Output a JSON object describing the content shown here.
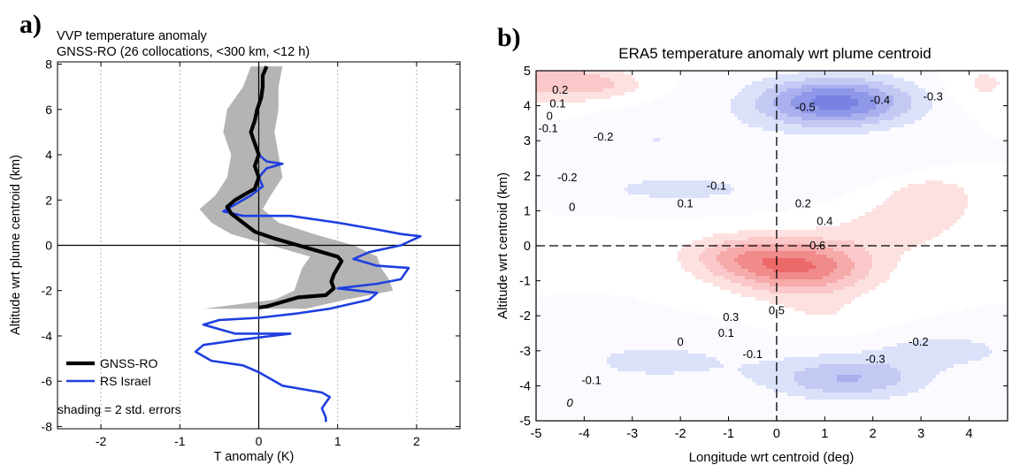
{
  "chart_data": [
    {
      "id": "a",
      "type": "line",
      "panel_label": "a)",
      "title": "VVP temperature anomaly",
      "subtitle": "GNSS-RO (26 collocations, <300 km, <12 h)",
      "xlabel": "T anomaly (K)",
      "ylabel": "Altitude wrt plume centroid (km)",
      "xlim": [
        -2.55,
        2.55
      ],
      "ylim": [
        -8.1,
        8.1
      ],
      "xticks": [
        -2,
        -1,
        0,
        1,
        2
      ],
      "yticks": [
        8,
        6,
        4,
        2,
        0,
        -2,
        -4,
        -6,
        -8
      ],
      "grid": "vertical dotted",
      "legend_position": "bottom-left",
      "note": "shading = 2 std. errors",
      "series": [
        {
          "name": "GNSS-RO",
          "color": "#000000",
          "points": [
            [
              0.1,
              7.9
            ],
            [
              0.05,
              7.5
            ],
            [
              0.05,
              7.0
            ],
            [
              0.03,
              6.5
            ],
            [
              -0.02,
              6.0
            ],
            [
              -0.05,
              5.5
            ],
            [
              -0.1,
              5.0
            ],
            [
              -0.05,
              4.5
            ],
            [
              0.0,
              4.0
            ],
            [
              -0.05,
              3.5
            ],
            [
              0.0,
              3.0
            ],
            [
              -0.05,
              2.5
            ],
            [
              -0.2,
              2.2
            ],
            [
              -0.3,
              2.0
            ],
            [
              -0.4,
              1.7
            ],
            [
              -0.35,
              1.4
            ],
            [
              -0.2,
              1.0
            ],
            [
              -0.05,
              0.6
            ],
            [
              0.2,
              0.3
            ],
            [
              0.5,
              0.0
            ],
            [
              0.8,
              -0.3
            ],
            [
              1.0,
              -0.5
            ],
            [
              1.05,
              -0.7
            ],
            [
              1.0,
              -1.0
            ],
            [
              0.95,
              -1.3
            ],
            [
              0.92,
              -1.6
            ],
            [
              0.95,
              -1.9
            ],
            [
              0.85,
              -2.2
            ],
            [
              0.5,
              -2.3
            ],
            [
              0.3,
              -2.5
            ],
            [
              0.1,
              -2.7
            ],
            [
              0.0,
              -2.75
            ]
          ]
        },
        {
          "name": "RS Israel",
          "color": "#1f3fe0",
          "points": [
            [
              0.0,
              4.0
            ],
            [
              0.1,
              3.7
            ],
            [
              0.3,
              3.6
            ],
            [
              0.1,
              3.4
            ],
            [
              0.0,
              3.0
            ],
            [
              0.05,
              2.6
            ],
            [
              -0.1,
              2.2
            ],
            [
              -0.3,
              1.8
            ],
            [
              -0.45,
              1.5
            ],
            [
              -0.2,
              1.3
            ],
            [
              0.4,
              1.3
            ],
            [
              1.0,
              1.0
            ],
            [
              1.5,
              0.7
            ],
            [
              1.8,
              0.5
            ],
            [
              2.05,
              0.4
            ],
            [
              1.8,
              0.0
            ],
            [
              1.4,
              -0.3
            ],
            [
              1.2,
              -0.6
            ],
            [
              1.5,
              -0.9
            ],
            [
              1.9,
              -1.0
            ],
            [
              1.8,
              -1.5
            ],
            [
              1.5,
              -1.7
            ],
            [
              1.0,
              -1.9
            ],
            [
              1.5,
              -2.1
            ],
            [
              1.4,
              -2.4
            ],
            [
              0.9,
              -2.8
            ],
            [
              0.5,
              -3.0
            ],
            [
              0.0,
              -3.2
            ],
            [
              -0.5,
              -3.3
            ],
            [
              -0.7,
              -3.5
            ],
            [
              -0.3,
              -3.9
            ],
            [
              0.4,
              -3.9
            ],
            [
              -0.3,
              -4.2
            ],
            [
              -0.7,
              -4.4
            ],
            [
              -0.8,
              -4.7
            ],
            [
              -0.6,
              -5.1
            ],
            [
              -0.2,
              -5.3
            ],
            [
              0.0,
              -5.6
            ],
            [
              0.3,
              -6.2
            ],
            [
              0.8,
              -6.5
            ],
            [
              0.9,
              -6.7
            ],
            [
              0.8,
              -7.2
            ],
            [
              0.85,
              -7.6
            ],
            [
              0.85,
              -7.8
            ]
          ]
        }
      ],
      "uncertainty_band": {
        "series": "GNSS-RO",
        "color": "#b4b4b4",
        "points": [
          [
            7.9,
            -0.1,
            0.3
          ],
          [
            7.0,
            -0.2,
            0.25
          ],
          [
            6.0,
            -0.4,
            0.25
          ],
          [
            5.0,
            -0.45,
            0.2
          ],
          [
            4.0,
            -0.35,
            0.25
          ],
          [
            3.0,
            -0.4,
            0.3
          ],
          [
            2.2,
            -0.55,
            0.15
          ],
          [
            1.6,
            -0.75,
            0.05
          ],
          [
            1.0,
            -0.6,
            0.25
          ],
          [
            0.5,
            -0.35,
            0.7
          ],
          [
            0.0,
            0.15,
            1.2
          ],
          [
            -0.5,
            0.65,
            1.5
          ],
          [
            -1.0,
            0.55,
            1.55
          ],
          [
            -1.5,
            0.5,
            1.65
          ],
          [
            -2.0,
            0.45,
            1.7
          ],
          [
            -2.4,
            0.2,
            1.1
          ],
          [
            -2.8,
            -0.7,
            0.6
          ]
        ]
      }
    },
    {
      "id": "b",
      "type": "heatmap",
      "panel_label": "b)",
      "title": "ERA5 temperature anomaly wrt plume centroid",
      "xlabel": "Longitude wrt centroid (deg)",
      "ylabel": "Altitude wrt centroid (km)",
      "xlim": [
        -5,
        4.8
      ],
      "ylim": [
        -5,
        5
      ],
      "xticks": [
        -5,
        -4,
        -3,
        -2,
        -1,
        0,
        1,
        2,
        3,
        4
      ],
      "yticks": [
        5,
        4,
        3,
        2,
        1,
        0,
        -1,
        -2,
        -3,
        -4,
        -5
      ],
      "colormap": "blue-white-red diverging",
      "contour_levels": [
        -0.6,
        -0.5,
        -0.4,
        -0.3,
        -0.2,
        -0.1,
        0,
        0.1,
        0.2,
        0.3,
        0.4,
        0.5,
        0.6,
        0.7
      ],
      "features": [
        {
          "x": -4.3,
          "y": 0.0,
          "sx": 1.8,
          "sy": 0.6,
          "amp": 0.06
        },
        {
          "x": 0.5,
          "y": -0.6,
          "sx": 1.5,
          "sy": 0.8,
          "amp": 0.5
        },
        {
          "x": -0.9,
          "y": -0.3,
          "sx": 1.1,
          "sy": 0.6,
          "amp": 0.2
        },
        {
          "x": 2.5,
          "y": 0.5,
          "sx": 1.3,
          "sy": 0.7,
          "amp": 0.14
        },
        {
          "x": 3.2,
          "y": 1.4,
          "sx": 1.0,
          "sy": 0.7,
          "amp": 0.17
        },
        {
          "x": 1.0,
          "y": -2.0,
          "sx": 1.2,
          "sy": 0.5,
          "amp": 0.08
        },
        {
          "x": 1.2,
          "y": 4.1,
          "sx": 1.6,
          "sy": 0.7,
          "amp": -0.55
        },
        {
          "x": -2.5,
          "y": 3.0,
          "sx": 2.2,
          "sy": 0.8,
          "amp": -0.1
        },
        {
          "x": -2.0,
          "y": 1.6,
          "sx": 2.5,
          "sy": 0.5,
          "amp": -0.12
        },
        {
          "x": 2.0,
          "y": 2.3,
          "sx": 1.5,
          "sy": 0.5,
          "amp": -0.08
        },
        {
          "x": -4.8,
          "y": 4.8,
          "sx": 1.2,
          "sy": 0.8,
          "amp": 0.25
        },
        {
          "x": -3.5,
          "y": 4.6,
          "sx": 0.8,
          "sy": 0.4,
          "amp": 0.15
        },
        {
          "x": 4.3,
          "y": 4.6,
          "sx": 0.8,
          "sy": 0.7,
          "amp": 0.12
        },
        {
          "x": 1.5,
          "y": -3.8,
          "sx": 1.6,
          "sy": 0.6,
          "amp": -0.3
        },
        {
          "x": -2.5,
          "y": -3.3,
          "sx": 2.5,
          "sy": 0.8,
          "amp": -0.12
        },
        {
          "x": 3.5,
          "y": -3.0,
          "sx": 1.5,
          "sy": 0.5,
          "amp": -0.15
        }
      ],
      "contour_labels": [
        {
          "text": "0.2",
          "x": -4.5,
          "y": 4.45
        },
        {
          "text": "0.1",
          "x": -4.55,
          "y": 4.05
        },
        {
          "text": "0",
          "x": -4.72,
          "y": 3.7
        },
        {
          "text": "-0.1",
          "x": -4.75,
          "y": 3.35
        },
        {
          "text": "-0.2",
          "x": -3.6,
          "y": 3.1
        },
        {
          "text": "-0.5",
          "x": 0.6,
          "y": 3.95
        },
        {
          "text": "-0.4",
          "x": 2.15,
          "y": 4.15
        },
        {
          "text": "-0.3",
          "x": 3.25,
          "y": 4.25
        },
        {
          "text": "-0.2",
          "x": -4.35,
          "y": 1.95
        },
        {
          "text": "-0.1",
          "x": -1.25,
          "y": 1.7
        },
        {
          "text": "0",
          "x": -4.25,
          "y": 1.1
        },
        {
          "text": "0.1",
          "x": -1.9,
          "y": 1.2
        },
        {
          "text": "0.2",
          "x": 0.55,
          "y": 1.2
        },
        {
          "text": "0.4",
          "x": 1.0,
          "y": 0.7
        },
        {
          "text": "0.6",
          "x": 0.85,
          "y": 0.0
        },
        {
          "text": "0.5",
          "x": 0.0,
          "y": -1.85
        },
        {
          "text": "0.3",
          "x": -0.95,
          "y": -2.05
        },
        {
          "text": "0.1",
          "x": -1.05,
          "y": -2.5
        },
        {
          "text": "0",
          "x": -2.0,
          "y": -2.75
        },
        {
          "text": "-0.1",
          "x": -0.5,
          "y": -3.1
        },
        {
          "text": "-0.2",
          "x": 2.95,
          "y": -2.75
        },
        {
          "text": "-0.3",
          "x": 2.05,
          "y": -3.25
        },
        {
          "text": "-0.1",
          "x": -3.85,
          "y": -3.85
        },
        {
          "text": "0",
          "x": -4.3,
          "y": -4.5
        }
      ]
    }
  ]
}
